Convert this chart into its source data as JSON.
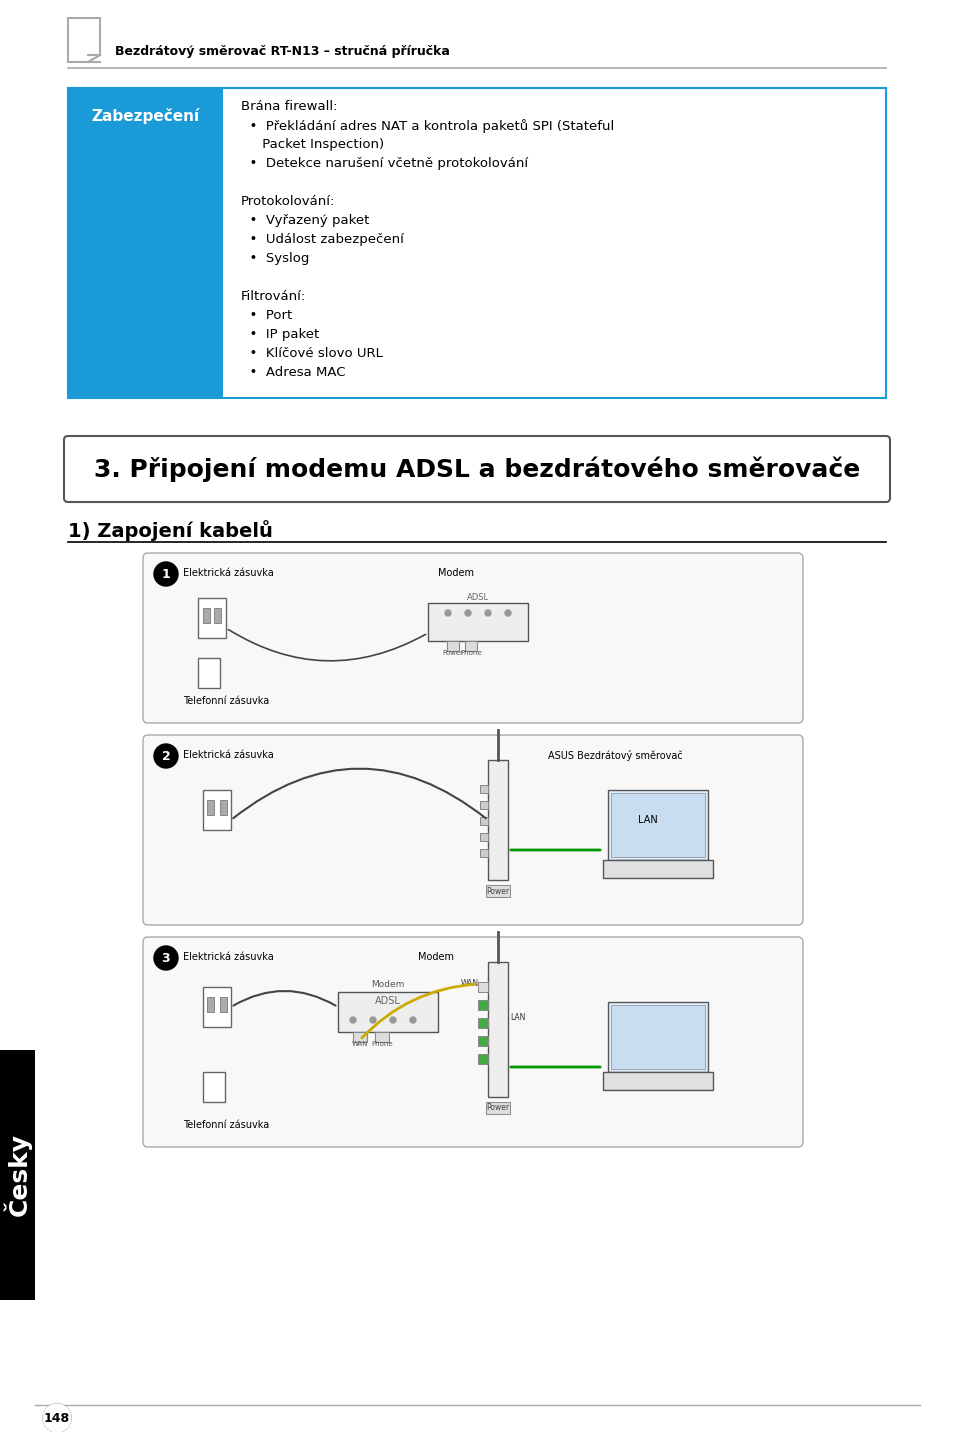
{
  "page_bg": "#ffffff",
  "header_text": "Bezdrátový směrovač RT-N13 – stručná příručka",
  "header_font_size": 9,
  "table_header_bg": "#1a9ad6",
  "table_header_text": "Zabezpečení",
  "table_header_text_color": "#ffffff",
  "table_header_font_size": 11,
  "table_border_color": "#1a9ad6",
  "table_content": [
    "Brána firewall:",
    "  •  Překládání adres NAT a kontrola paketů SPI (Stateful",
    "     Packet Inspection)",
    "  •  Detekce narušení včetně protokolování",
    "",
    "Protokolování:",
    "  •  Vyřazený paket",
    "  •  Událost zabezpečení",
    "  •  Syslog",
    "",
    "Filtrování:",
    "  •  Port",
    "  •  IP paket",
    "  •  Klíčové slovo URL",
    "  •  Adresa MAC"
  ],
  "section_title": "3. Připojení modemu ADSL a bezdrátového směrovače",
  "section_title_font_size": 18,
  "subsection_title": "1) Zapojení kabelů",
  "subsection_title_font_size": 14,
  "sidebar_bg": "#000000",
  "sidebar_text": "Česky",
  "sidebar_text_color": "#ffffff",
  "page_number": "148",
  "diagram_border_color": "#cccccc",
  "diagram_bg": "#f5f5f5",
  "step1_labels": [
    "Elektrická zásuvka",
    "Modem",
    "Telefonní zásuvka"
  ],
  "step2_labels": [
    "Elektrická zásuvka",
    "ASUS Bezdrátový směrovač",
    "LAN"
  ],
  "step3_labels": [
    "Elektrická zásuvka",
    "Modem",
    "Telefonní zásuvka",
    "WAN",
    "LAN"
  ],
  "content_font_size": 9.5
}
